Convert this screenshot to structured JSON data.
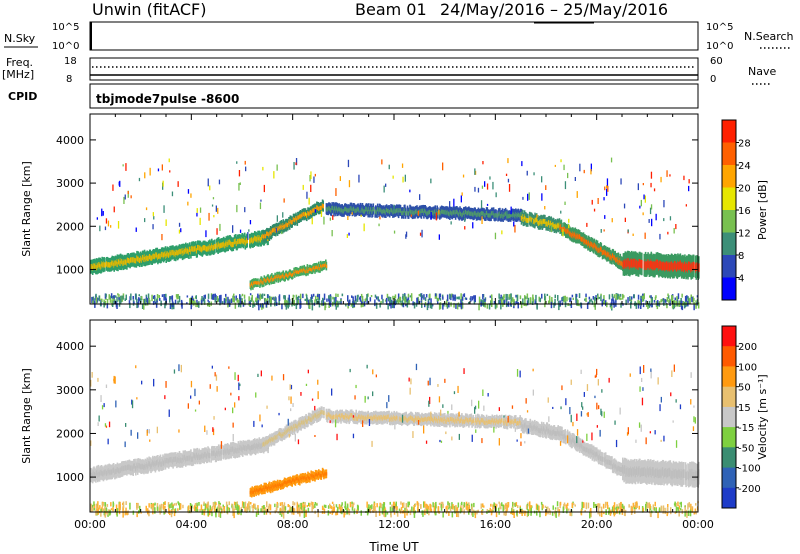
{
  "header": {
    "title": "Unwin (fitACF)",
    "beam": "Beam 01",
    "date_range": "24/May/2016 – 25/May/2016"
  },
  "panels": {
    "nsky_label": "N.Sky",
    "nsky_ticks": [
      "10^5",
      "10^0"
    ],
    "nsearch_label": "N.Search",
    "freq_label": "Freq.",
    "freq_unit": "[MHz]",
    "freq_ticks": [
      "18",
      "8"
    ],
    "nave_ticks": [
      "60",
      "0"
    ],
    "nave_label": "Nave",
    "cpid_label": "CPID",
    "cpid_value": "tbjmode7pulse -8600"
  },
  "chart_data": [
    {
      "type": "heatmap",
      "name": "power-panel",
      "ylabel": "Slant Range [km]",
      "ylim": [
        200,
        4600
      ],
      "yticks": [
        1000,
        2000,
        3000,
        4000
      ],
      "xlabel": "",
      "xlim": [
        0,
        24
      ],
      "colorbar_label": "Power [dB]",
      "colorbar_ticks": [
        "4",
        "8",
        "12",
        "16",
        "20",
        "24",
        "28"
      ],
      "colorbar_colors": [
        "#0000ff",
        "#2c48b8",
        "#3c8f78",
        "#78c050",
        "#e6e600",
        "#ffa500",
        "#ff6000",
        "#ff2000"
      ],
      "echo_bands": [
        {
          "t": [
            0.0,
            7.0
          ],
          "r_start": 1050,
          "r_end": 1750,
          "width": 320,
          "color": "#2e9e6a",
          "core": "#e6b800"
        },
        {
          "t": [
            6.8,
            9.2
          ],
          "r_start": 1750,
          "r_end": 2500,
          "width": 260,
          "color": "#2f8a6a",
          "core": "#ff9a00"
        },
        {
          "t": [
            6.3,
            9.3
          ],
          "r_start": 650,
          "r_end": 1100,
          "width": 200,
          "color": "#44aa60",
          "core": "#ff8a00"
        },
        {
          "t": [
            9.3,
            17.0
          ],
          "r_start": 2400,
          "r_end": 2250,
          "width": 260,
          "color": "#2d50a8",
          "core": "#4f9a6a"
        },
        {
          "t": [
            17.0,
            18.5
          ],
          "r_start": 2200,
          "r_end": 2000,
          "width": 300,
          "color": "#3b8f70",
          "core": "#e8c000"
        },
        {
          "t": [
            18.5,
            21.0
          ],
          "r_start": 2000,
          "r_end": 1150,
          "width": 300,
          "color": "#3c9a60",
          "core": "#ff6a00"
        },
        {
          "t": [
            21.0,
            24.0
          ],
          "r_start": 1150,
          "r_end": 1050,
          "width": 520,
          "color": "#3a9a60",
          "core": "#ff3010"
        }
      ],
      "ground_scatter": {
        "t": [
          0,
          24
        ],
        "range": [
          200,
          450
        ],
        "colors": [
          "#2c48b8",
          "#3c8f78",
          "#78c050"
        ]
      }
    },
    {
      "type": "heatmap",
      "name": "velocity-panel",
      "ylabel": "Slant Range [km]",
      "ylim": [
        200,
        4600
      ],
      "yticks": [
        1000,
        2000,
        3000,
        4000
      ],
      "xlabel": "Time UT",
      "xlim": [
        0,
        24
      ],
      "xticks": [
        "00:00",
        "04:00",
        "08:00",
        "12:00",
        "16:00",
        "20:00",
        "00:00"
      ],
      "colorbar_label": "Velocity [m s⁻¹]",
      "colorbar_ticks": [
        "200",
        "100",
        "50",
        "15",
        "-15",
        "-50",
        "-100",
        "-200"
      ],
      "colorbar_colors": [
        "#1e3cc8",
        "#2f62b6",
        "#3a8d72",
        "#7ed040",
        "#c8c8c8",
        "#e8c070",
        "#ff9a10",
        "#ff5a00",
        "#ff1010"
      ],
      "echo_bands": [
        {
          "t": [
            0.0,
            7.0
          ],
          "r_start": 1050,
          "r_end": 1750,
          "width": 320,
          "color": "#c8c8c8",
          "core": "#bdbdbd"
        },
        {
          "t": [
            6.8,
            9.2
          ],
          "r_start": 1750,
          "r_end": 2500,
          "width": 260,
          "color": "#c8c8c8",
          "core": "#d8c080"
        },
        {
          "t": [
            6.3,
            9.3
          ],
          "r_start": 650,
          "r_end": 1100,
          "width": 200,
          "color": "#ff9a10",
          "core": "#ff7a00"
        },
        {
          "t": [
            9.3,
            17.0
          ],
          "r_start": 2400,
          "r_end": 2250,
          "width": 260,
          "color": "#c8c8c8",
          "core": "#e8c070"
        },
        {
          "t": [
            17.0,
            18.5
          ],
          "r_start": 2200,
          "r_end": 2000,
          "width": 300,
          "color": "#c8c8c8",
          "core": "#bdbdbd"
        },
        {
          "t": [
            18.5,
            21.0
          ],
          "r_start": 2000,
          "r_end": 1150,
          "width": 300,
          "color": "#c8c8c8",
          "core": "#bdbdbd"
        },
        {
          "t": [
            21.0,
            24.0
          ],
          "r_start": 1150,
          "r_end": 1050,
          "width": 520,
          "color": "#c8c8c8",
          "core": "#bdbdbd"
        }
      ],
      "ground_scatter": {
        "t": [
          0,
          24
        ],
        "range": [
          200,
          450
        ],
        "colors": [
          "#7ed040",
          "#e8c070",
          "#ffb030"
        ]
      }
    }
  ]
}
